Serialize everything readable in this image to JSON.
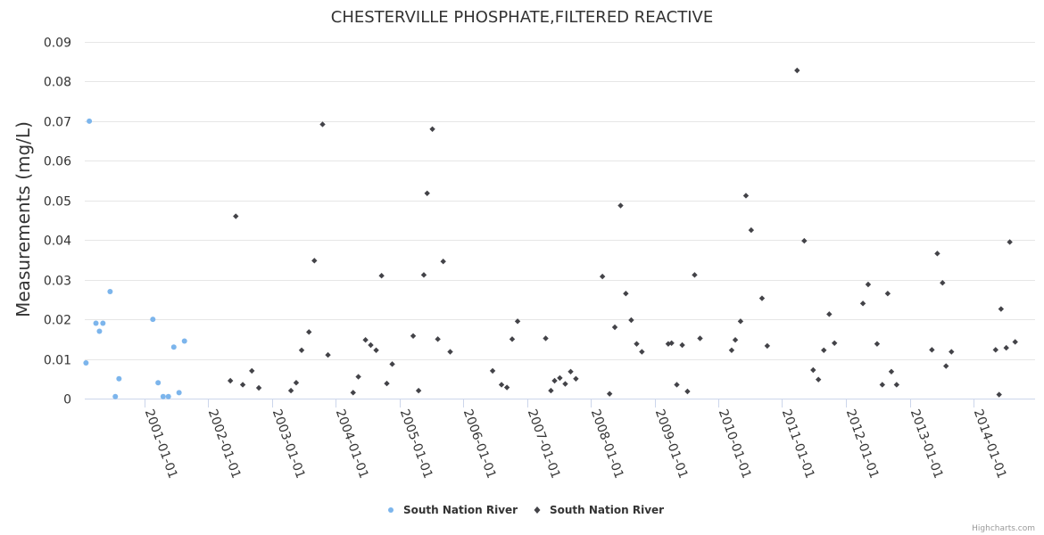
{
  "chart_data": {
    "type": "scatter",
    "title": "CHESTERVILLE PHOSPHATE,FILTERED REACTIVE",
    "xlabel": "",
    "ylabel": "Measurements (mg/L)",
    "ylim": [
      0,
      0.09
    ],
    "y_ticks": [
      "0",
      "0.01",
      "0.02",
      "0.03",
      "0.04",
      "0.05",
      "0.06",
      "0.07",
      "0.08",
      "0.09"
    ],
    "x_range": [
      "2000-01-25",
      "2014-12-20"
    ],
    "x_ticks": [
      "2001-01-01",
      "2002-01-01",
      "2003-01-01",
      "2004-01-01",
      "2005-01-01",
      "2006-01-01",
      "2007-01-01",
      "2008-01-01",
      "2009-01-01",
      "2010-01-01",
      "2011-01-01",
      "2012-01-01",
      "2013-01-01",
      "2014-01-01"
    ],
    "grid": true,
    "legend_position": "bottom",
    "series": [
      {
        "name": "South Nation River",
        "color": "#7cb5ec",
        "marker": "circle",
        "points": [
          [
            "2000-02-01",
            0.009
          ],
          [
            "2000-02-20",
            0.07
          ],
          [
            "2000-03-29",
            0.019
          ],
          [
            "2000-04-18",
            0.017
          ],
          [
            "2000-05-08",
            0.019
          ],
          [
            "2000-06-18",
            0.027
          ],
          [
            "2000-07-18",
            0.0005
          ],
          [
            "2000-08-08",
            0.005
          ],
          [
            "2001-02-18",
            0.02
          ],
          [
            "2001-03-20",
            0.004
          ],
          [
            "2001-04-18",
            0.0005
          ],
          [
            "2001-05-18",
            0.0005
          ],
          [
            "2001-06-18",
            0.013
          ],
          [
            "2001-07-18",
            0.0015
          ],
          [
            "2001-08-18",
            0.0145
          ]
        ]
      },
      {
        "name": "South Nation River",
        "color": "#434348",
        "marker": "diamond",
        "points": [
          [
            "2002-05-08",
            0.0045
          ],
          [
            "2002-06-08",
            0.046
          ],
          [
            "2002-07-18",
            0.0035
          ],
          [
            "2002-09-08",
            0.007
          ],
          [
            "2002-10-18",
            0.0027
          ],
          [
            "2003-04-20",
            0.002
          ],
          [
            "2003-05-20",
            0.004
          ],
          [
            "2003-06-20",
            0.0122
          ],
          [
            "2003-08-01",
            0.0168
          ],
          [
            "2003-09-01",
            0.0348
          ],
          [
            "2003-10-18",
            0.0692
          ],
          [
            "2003-11-18",
            0.011
          ],
          [
            "2004-04-10",
            0.0015
          ],
          [
            "2004-05-10",
            0.0055
          ],
          [
            "2004-06-20",
            0.0148
          ],
          [
            "2004-07-20",
            0.0135
          ],
          [
            "2004-08-20",
            0.0122
          ],
          [
            "2004-09-20",
            0.031
          ],
          [
            "2004-10-20",
            0.0038
          ],
          [
            "2004-11-20",
            0.0087
          ],
          [
            "2005-03-20",
            0.0158
          ],
          [
            "2005-04-20",
            0.002
          ],
          [
            "2005-05-20",
            0.0312
          ],
          [
            "2005-06-08",
            0.0518
          ],
          [
            "2005-07-08",
            0.068
          ],
          [
            "2005-08-08",
            0.015
          ],
          [
            "2005-09-08",
            0.0346
          ],
          [
            "2005-10-18",
            0.0118
          ],
          [
            "2006-06-18",
            0.007
          ],
          [
            "2006-08-08",
            0.0035
          ],
          [
            "2006-09-08",
            0.0028
          ],
          [
            "2006-10-08",
            0.015
          ],
          [
            "2006-11-08",
            0.0195
          ],
          [
            "2007-04-18",
            0.0152
          ],
          [
            "2007-05-18",
            0.002
          ],
          [
            "2007-06-08",
            0.0045
          ],
          [
            "2007-07-08",
            0.0052
          ],
          [
            "2007-08-08",
            0.0037
          ],
          [
            "2007-09-08",
            0.0068
          ],
          [
            "2007-10-08",
            0.005
          ],
          [
            "2008-03-08",
            0.0308
          ],
          [
            "2008-04-18",
            0.0012
          ],
          [
            "2008-05-18",
            0.018
          ],
          [
            "2008-06-20",
            0.0487
          ],
          [
            "2008-07-20",
            0.0265
          ],
          [
            "2008-08-20",
            0.0198
          ],
          [
            "2008-09-20",
            0.0138
          ],
          [
            "2008-10-20",
            0.0118
          ],
          [
            "2009-03-20",
            0.0138
          ],
          [
            "2009-04-08",
            0.014
          ],
          [
            "2009-05-08",
            0.0035
          ],
          [
            "2009-06-08",
            0.0135
          ],
          [
            "2009-07-08",
            0.0018
          ],
          [
            "2009-08-18",
            0.0312
          ],
          [
            "2009-09-18",
            0.0152
          ],
          [
            "2010-03-18",
            0.0122
          ],
          [
            "2010-04-08",
            0.0148
          ],
          [
            "2010-05-08",
            0.0195
          ],
          [
            "2010-06-08",
            0.0512
          ],
          [
            "2010-07-08",
            0.0425
          ],
          [
            "2010-09-08",
            0.0253
          ],
          [
            "2010-10-08",
            0.0133
          ],
          [
            "2011-03-28",
            0.0828
          ],
          [
            "2011-05-08",
            0.0398
          ],
          [
            "2011-06-28",
            0.0072
          ],
          [
            "2011-07-28",
            0.0048
          ],
          [
            "2011-08-28",
            0.0122
          ],
          [
            "2011-09-28",
            0.0213
          ],
          [
            "2011-10-28",
            0.014
          ],
          [
            "2012-04-08",
            0.024
          ],
          [
            "2012-05-08",
            0.0288
          ],
          [
            "2012-06-28",
            0.0138
          ],
          [
            "2012-07-28",
            0.0035
          ],
          [
            "2012-08-28",
            0.0265
          ],
          [
            "2012-09-18",
            0.0068
          ],
          [
            "2012-10-18",
            0.0035
          ],
          [
            "2013-05-08",
            0.0123
          ],
          [
            "2013-06-08",
            0.0366
          ],
          [
            "2013-07-08",
            0.0292
          ],
          [
            "2013-07-28",
            0.0082
          ],
          [
            "2013-08-28",
            0.0118
          ],
          [
            "2014-05-08",
            0.0123
          ],
          [
            "2014-05-28",
            0.001
          ],
          [
            "2014-06-08",
            0.0226
          ],
          [
            "2014-07-08",
            0.0128
          ],
          [
            "2014-07-28",
            0.0395
          ],
          [
            "2014-08-28",
            0.0143
          ]
        ]
      }
    ]
  },
  "credits": "Highcharts.com"
}
